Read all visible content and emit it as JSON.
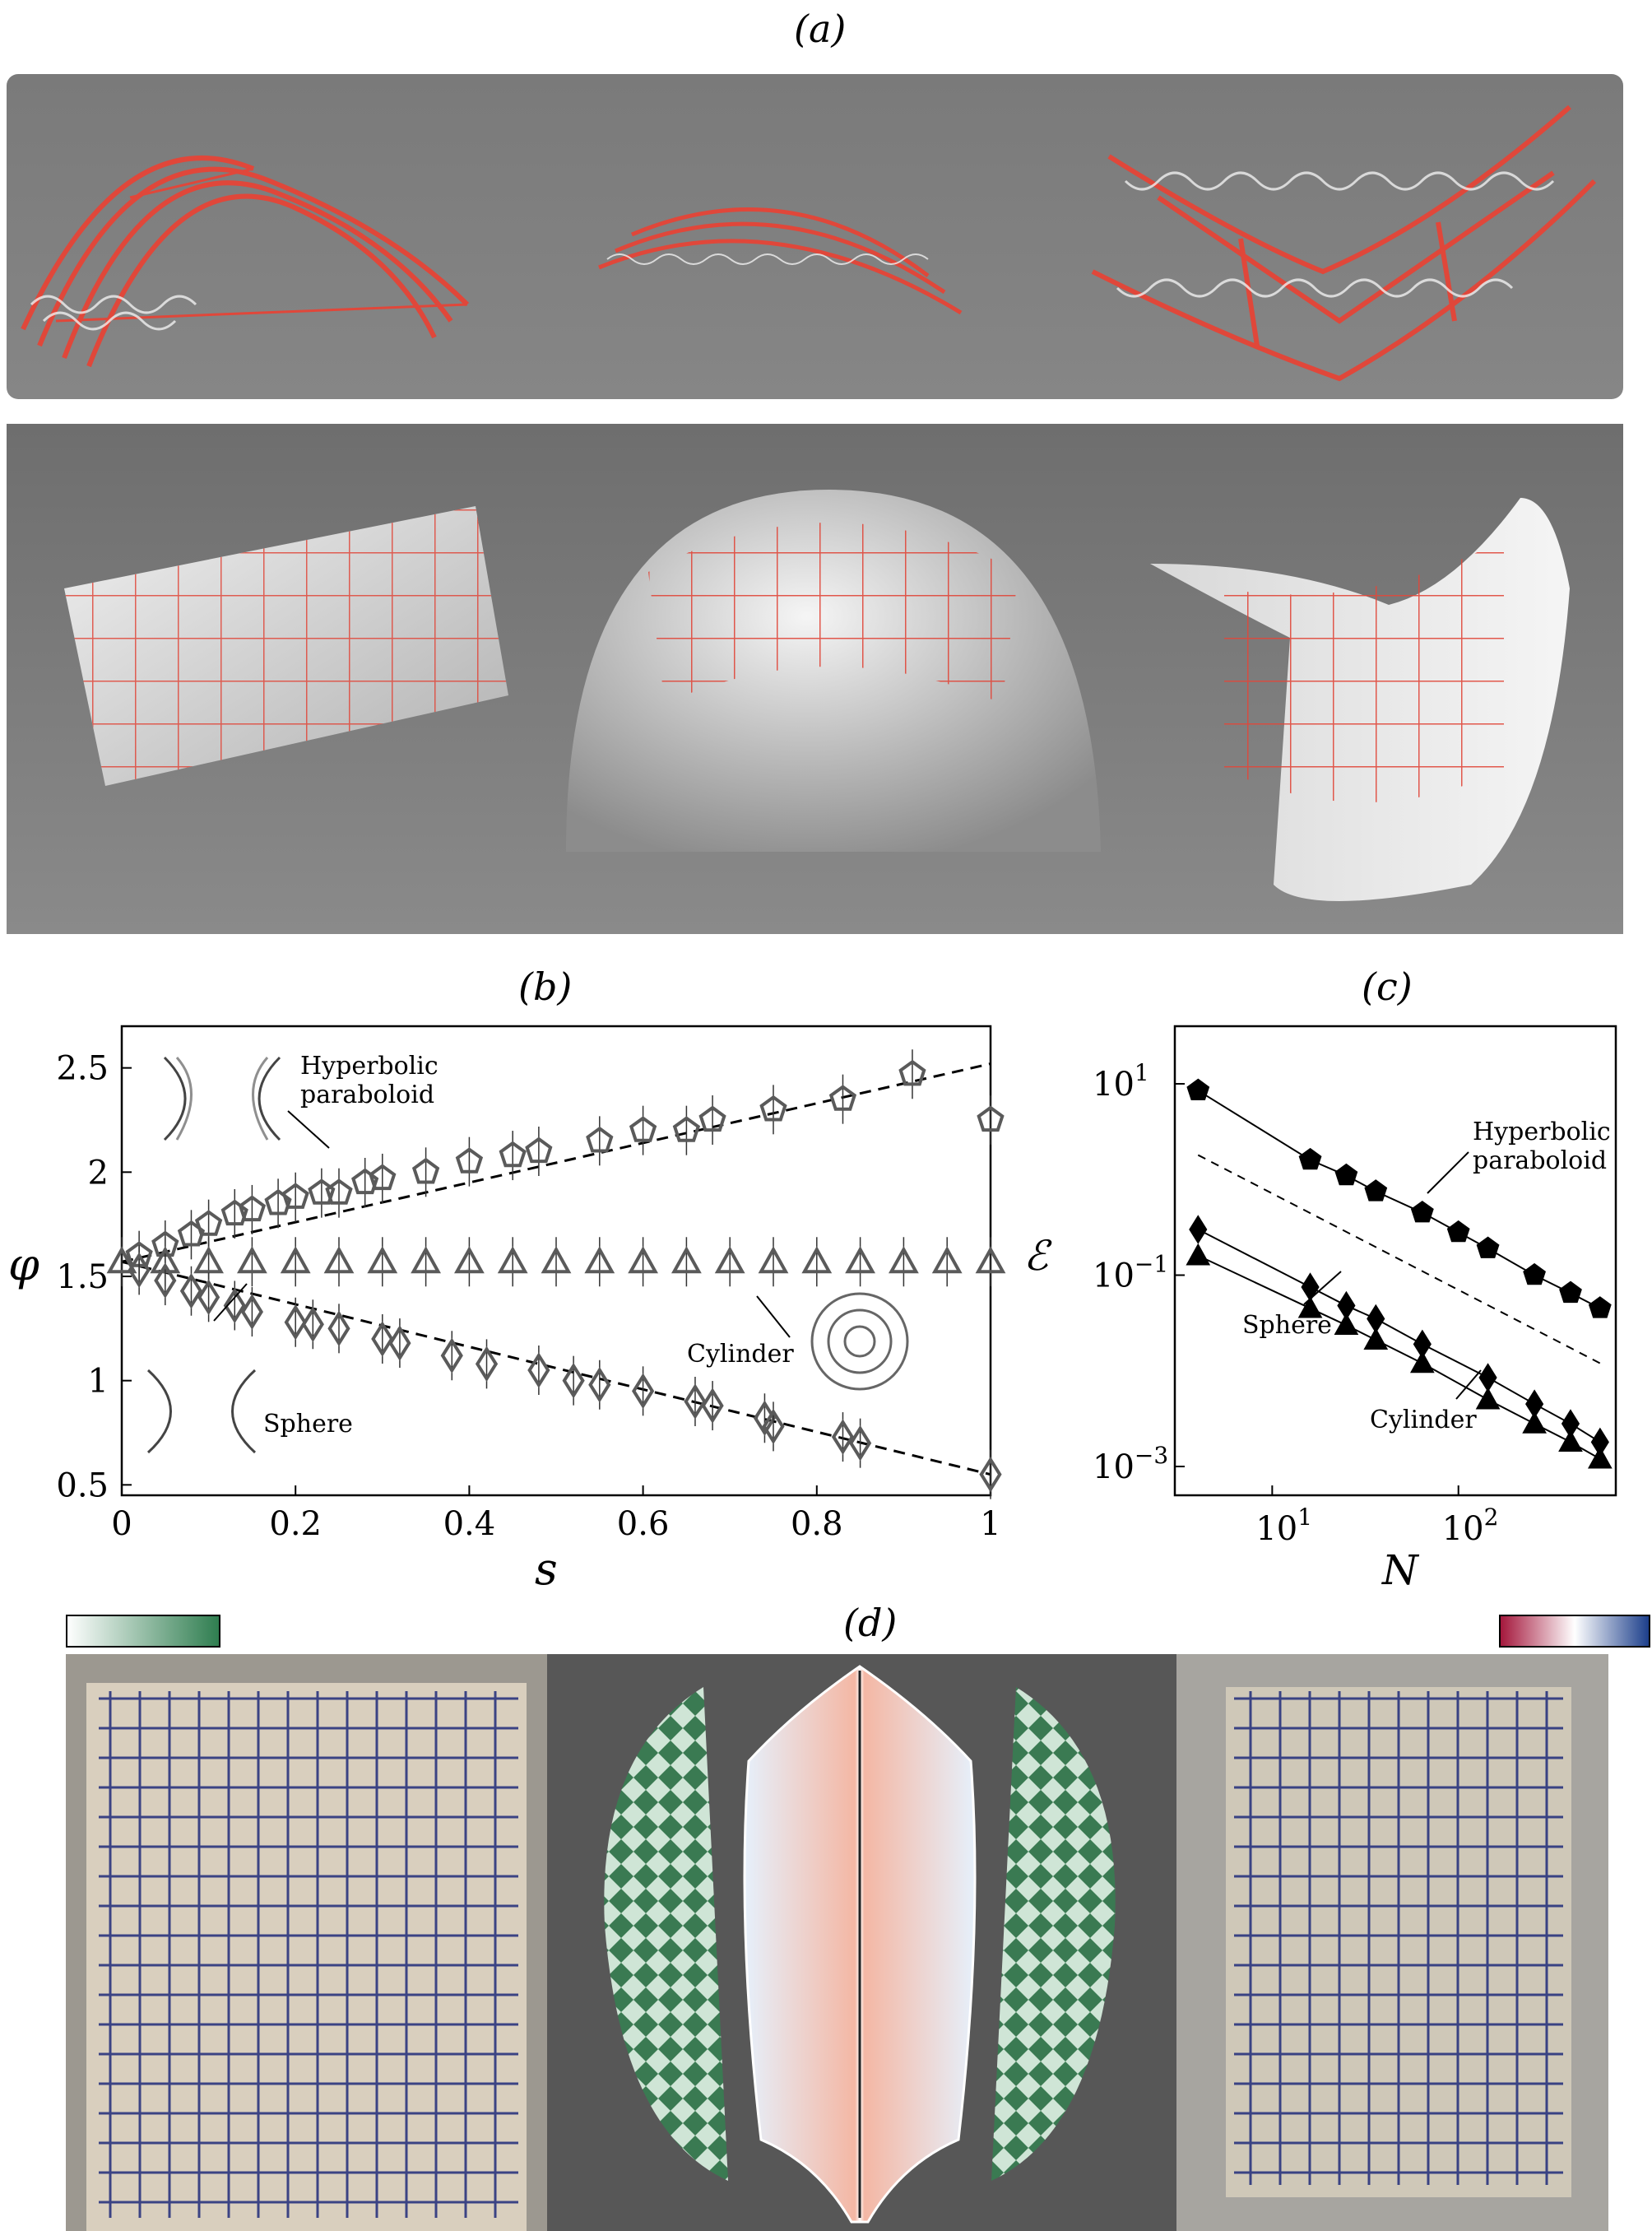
{
  "panels": {
    "a": "(a)",
    "b": "(b)",
    "c": "(c)",
    "d": "(d)"
  },
  "colors": {
    "lattice_red": "#e0473a",
    "lattice_white": "#f2f2f2",
    "render_bg": "#808080",
    "surface_light": "#e8e8e8",
    "net_blue": "#1f2a7a",
    "colorbar_green": "#2e7d4f",
    "colorbar_red": "#a3153a",
    "colorbar_blue": "#1a3d8a"
  },
  "chart_data": [
    {
      "type": "scatter",
      "ylabel": "φ",
      "xlabel": "s",
      "xlim": [
        0,
        1
      ],
      "ylim": [
        0.45,
        2.7
      ],
      "xticks": [
        "0",
        "0.2",
        "0.4",
        "0.6",
        "0.8",
        "1"
      ],
      "yticks": [
        "0.5",
        "1",
        "1.5",
        "2",
        "2.5"
      ],
      "annotations": [
        "Hyperbolic",
        "paraboloid",
        "Cylinder",
        "Sphere"
      ],
      "series": [
        {
          "marker": "pentagon",
          "x": [
            0.02,
            0.05,
            0.08,
            0.1,
            0.13,
            0.15,
            0.18,
            0.2,
            0.23,
            0.25,
            0.28,
            0.3,
            0.35,
            0.4,
            0.45,
            0.48,
            0.55,
            0.6,
            0.65,
            0.68,
            0.75,
            0.83,
            0.91,
            1.0
          ],
          "y": [
            1.6,
            1.65,
            1.7,
            1.75,
            1.8,
            1.82,
            1.85,
            1.88,
            1.9,
            1.9,
            1.95,
            1.97,
            2.0,
            2.05,
            2.08,
            2.1,
            2.15,
            2.2,
            2.2,
            2.25,
            2.3,
            2.35,
            2.47,
            2.25
          ]
        },
        {
          "marker": "triangle",
          "x": [
            0.0,
            0.05,
            0.1,
            0.15,
            0.2,
            0.25,
            0.3,
            0.35,
            0.4,
            0.45,
            0.5,
            0.55,
            0.6,
            0.65,
            0.7,
            0.75,
            0.8,
            0.85,
            0.9,
            0.95,
            1.0
          ],
          "y": [
            1.57,
            1.57,
            1.57,
            1.57,
            1.57,
            1.57,
            1.57,
            1.57,
            1.57,
            1.57,
            1.57,
            1.57,
            1.57,
            1.57,
            1.57,
            1.57,
            1.57,
            1.57,
            1.57,
            1.57,
            1.57
          ]
        },
        {
          "marker": "diamond",
          "x": [
            0.02,
            0.05,
            0.08,
            0.1,
            0.13,
            0.15,
            0.2,
            0.22,
            0.25,
            0.3,
            0.32,
            0.38,
            0.42,
            0.48,
            0.52,
            0.55,
            0.6,
            0.66,
            0.68,
            0.74,
            0.75,
            0.83,
            0.85,
            1.0
          ],
          "y": [
            1.53,
            1.48,
            1.43,
            1.4,
            1.36,
            1.33,
            1.28,
            1.27,
            1.25,
            1.2,
            1.18,
            1.12,
            1.08,
            1.05,
            1.0,
            0.98,
            0.95,
            0.9,
            0.88,
            0.82,
            0.78,
            0.73,
            0.7,
            0.55
          ]
        }
      ],
      "fits": [
        {
          "x": [
            0,
            1
          ],
          "y": [
            1.57,
            2.52
          ]
        },
        {
          "x": [
            0,
            1
          ],
          "y": [
            1.57,
            0.55
          ]
        }
      ]
    },
    {
      "type": "scatter",
      "ylabel": "ℰ",
      "xlabel": "N",
      "xscale": "log",
      "yscale": "log",
      "xlim": [
        3,
        700
      ],
      "ylim": [
        0.0005,
        40
      ],
      "xticks": [
        {
          "base": "10",
          "exp": "1",
          "value": 10
        },
        {
          "base": "10",
          "exp": "2",
          "value": 100
        }
      ],
      "yticks": [
        {
          "base": "10",
          "exp": "1",
          "value": 10
        },
        {
          "base": "10",
          "exp": "−1",
          "value": 0.1
        },
        {
          "base": "10",
          "exp": "−3",
          "value": 0.001
        }
      ],
      "annotations": [
        "Hyperbolic",
        "paraboloid",
        "Sphere",
        "Cylinder"
      ],
      "series": [
        {
          "marker": "pentagon",
          "x": [
            4,
            16,
            25,
            36,
            64,
            100,
            144,
            256,
            400,
            576
          ],
          "y": [
            8.5,
            1.6,
            1.1,
            0.75,
            0.45,
            0.28,
            0.19,
            0.1,
            0.065,
            0.045
          ]
        },
        {
          "marker": "diamond",
          "x": [
            4,
            16,
            25,
            36,
            64,
            144,
            256,
            400,
            576
          ],
          "y": [
            0.3,
            0.075,
            0.048,
            0.035,
            0.019,
            0.0085,
            0.0045,
            0.0028,
            0.0018
          ]
        },
        {
          "marker": "triangle",
          "x": [
            4,
            16,
            25,
            36,
            64,
            144,
            256,
            400,
            576
          ],
          "y": [
            0.16,
            0.045,
            0.03,
            0.021,
            0.012,
            0.005,
            0.0028,
            0.0018,
            0.0012
          ]
        }
      ],
      "guide": {
        "x": [
          4,
          576
        ],
        "y": [
          1.8,
          0.012
        ]
      }
    }
  ]
}
